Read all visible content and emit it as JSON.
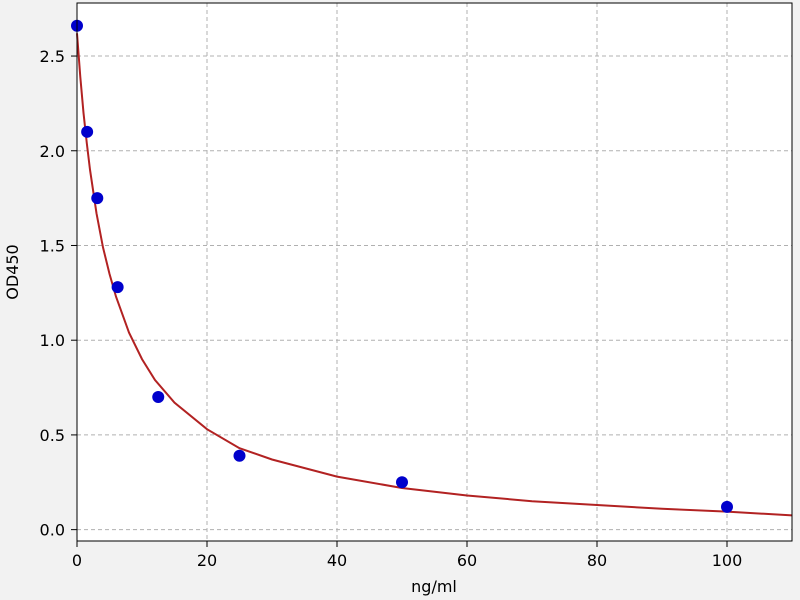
{
  "chart_data": {
    "type": "scatter",
    "xlabel": "ng/ml",
    "ylabel": "OD450",
    "xlim": [
      0,
      110
    ],
    "ylim": [
      -0.06,
      2.78
    ],
    "x_ticks": [
      0,
      20,
      40,
      60,
      80,
      100
    ],
    "x_tick_labels": [
      "0",
      "20",
      "40",
      "60",
      "80",
      "100"
    ],
    "y_ticks": [
      0.0,
      0.5,
      1.0,
      1.5,
      2.0,
      2.5
    ],
    "y_tick_labels": [
      "0.0",
      "0.5",
      "1.0",
      "1.5",
      "2.0",
      "2.5"
    ],
    "grid": true,
    "series": [
      {
        "kind": "points",
        "color": "#0000cc",
        "x": [
          0,
          1.56,
          3.12,
          6.25,
          12.5,
          25,
          50,
          100
        ],
        "y": [
          2.66,
          2.1,
          1.75,
          1.28,
          0.7,
          0.39,
          0.25,
          0.12
        ]
      },
      {
        "kind": "fitted-curve",
        "color": "#b22222",
        "x": [
          0,
          0.5,
          1,
          1.5,
          2,
          3,
          4,
          5,
          6,
          8,
          10,
          12,
          15,
          20,
          25,
          30,
          40,
          50,
          60,
          70,
          80,
          90,
          100,
          110
        ],
        "y": [
          2.62,
          2.39,
          2.2,
          2.04,
          1.9,
          1.67,
          1.49,
          1.35,
          1.23,
          1.04,
          0.9,
          0.79,
          0.67,
          0.53,
          0.43,
          0.37,
          0.28,
          0.22,
          0.18,
          0.15,
          0.13,
          0.11,
          0.095,
          0.075
        ]
      }
    ]
  }
}
